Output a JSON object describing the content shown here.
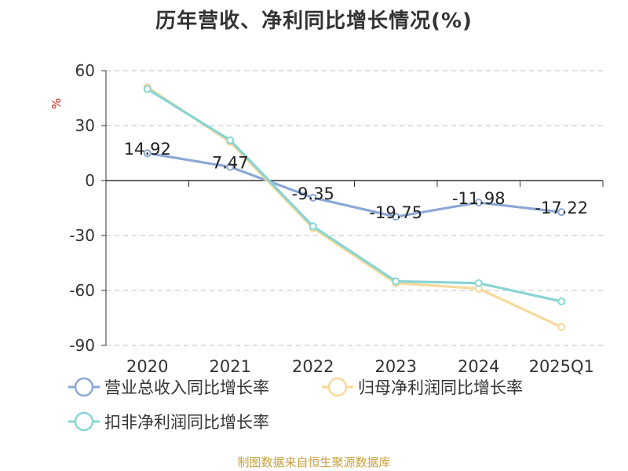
{
  "title": "历年营收、净利同比增长情况(%)",
  "source": "制图数据来自恒生聚源数据库",
  "chart_data": {
    "type": "line",
    "title": "历年营收、净利同比增长情况(%)",
    "ylabel": "%",
    "xlabel": "",
    "categories": [
      "2020",
      "2021",
      "2022",
      "2023",
      "2024",
      "2025Q1"
    ],
    "ylim": [
      -90,
      60
    ],
    "yticks": [
      60,
      30,
      0,
      -30,
      -60,
      -90
    ],
    "grid": true,
    "legend_position": "bottom",
    "series": [
      {
        "name": "营业总收入同比增长率",
        "color": "#8ba8d4",
        "values": [
          14.92,
          7.47,
          -9.35,
          -19.75,
          -11.98,
          -17.22
        ],
        "labels": [
          "14.92",
          "7.47",
          "-9.35",
          "-19.75",
          "-11.98",
          "-17.22"
        ]
      },
      {
        "name": "归母净利润同比增长率",
        "color": "#f7d99a",
        "values": [
          51,
          21,
          -26,
          -56,
          -59,
          -80
        ]
      },
      {
        "name": "扣非净利润同比增长率",
        "color": "#88d4d4",
        "values": [
          50,
          22,
          -25,
          -55,
          -56,
          -66
        ]
      }
    ]
  }
}
